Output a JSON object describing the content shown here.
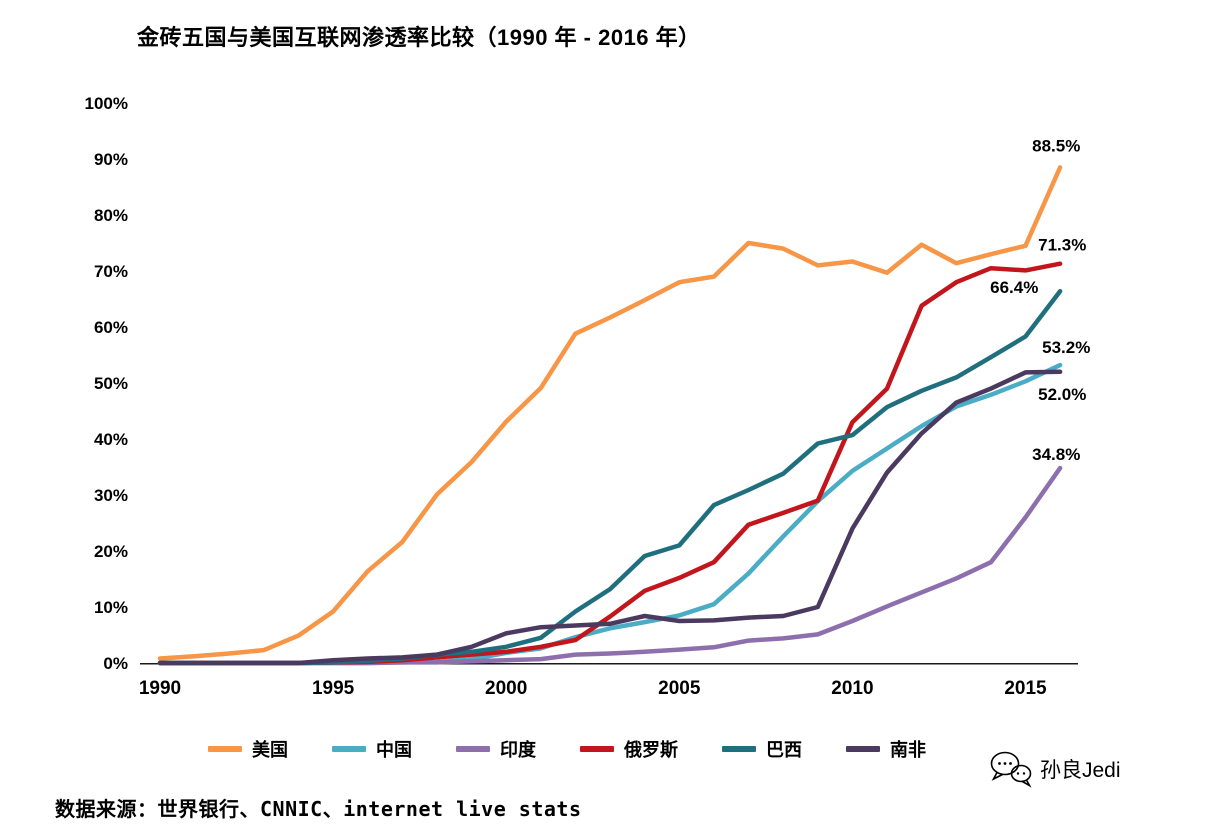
{
  "title": "金砖五国与美国互联网渗透率比较（1990 年 - 2016 年）",
  "source": "数据来源：世界银行、CNNIC、internet live stats",
  "watermark": "孙良Jedi",
  "chart_data": {
    "type": "line",
    "title": "金砖五国与美国互联网渗透率比较（1990 年 - 2016 年）",
    "x": [
      1990,
      1991,
      1992,
      1993,
      1994,
      1995,
      1996,
      1997,
      1998,
      1999,
      2000,
      2001,
      2002,
      2003,
      2004,
      2005,
      2006,
      2007,
      2008,
      2009,
      2010,
      2011,
      2012,
      2013,
      2014,
      2015,
      2016
    ],
    "series": [
      {
        "name": "美国",
        "color": "#F79646",
        "end_label": "88.5%",
        "label_offset": [
          -28,
          -16
        ],
        "values": [
          0.8,
          1.2,
          1.7,
          2.3,
          4.9,
          9.2,
          16.4,
          21.6,
          30.1,
          35.9,
          43.1,
          49.1,
          58.8,
          61.7,
          64.8,
          68.0,
          69.0,
          75.0,
          74.0,
          71.0,
          71.7,
          69.7,
          74.7,
          71.4,
          73.0,
          74.5,
          88.5
        ]
      },
      {
        "name": "中国",
        "color": "#4BACC6",
        "end_label": "53.2%",
        "label_offset": [
          -18,
          -12
        ],
        "values": [
          0,
          0,
          0,
          0,
          0,
          0,
          0,
          0.1,
          0.2,
          0.7,
          1.8,
          2.6,
          4.6,
          6.2,
          7.3,
          8.5,
          10.5,
          16.0,
          22.6,
          28.9,
          34.3,
          38.3,
          42.3,
          45.8,
          47.9,
          50.3,
          53.2
        ]
      },
      {
        "name": "印度",
        "color": "#8E6FAD",
        "end_label": "34.8%",
        "label_offset": [
          -28,
          -8
        ],
        "values": [
          0,
          0,
          0,
          0,
          0,
          0,
          0,
          0.1,
          0.1,
          0.3,
          0.5,
          0.7,
          1.5,
          1.7,
          2.0,
          2.4,
          2.8,
          4.0,
          4.4,
          5.1,
          7.5,
          10.1,
          12.6,
          15.1,
          18.0,
          26.0,
          34.8
        ]
      },
      {
        "name": "俄罗斯",
        "color": "#C3161C",
        "end_label": "71.3%",
        "label_offset": [
          -22,
          -13
        ],
        "values": [
          0,
          0,
          0,
          0,
          0,
          0.1,
          0.2,
          0.5,
          1.0,
          1.5,
          2.0,
          2.9,
          4.1,
          8.3,
          12.9,
          15.2,
          18.0,
          24.7,
          26.8,
          29.0,
          43.0,
          49.0,
          63.8,
          68.0,
          70.5,
          70.1,
          71.3
        ]
      },
      {
        "name": "巴西",
        "color": "#1F6F7F",
        "end_label": "66.4%",
        "label_offset": [
          -70,
          2
        ],
        "values": [
          0,
          0,
          0,
          0,
          0,
          0.1,
          0.4,
          0.8,
          1.5,
          2.0,
          2.9,
          4.5,
          9.2,
          13.2,
          19.1,
          21.0,
          28.2,
          30.9,
          33.8,
          39.2,
          40.7,
          45.7,
          48.6,
          51.0,
          54.6,
          58.3,
          66.4
        ]
      },
      {
        "name": "南非",
        "color": "#4B3A5F",
        "end_label": "52.0%",
        "label_offset": [
          -22,
          28
        ],
        "values": [
          0,
          0,
          0,
          0,
          0,
          0.5,
          0.8,
          1.0,
          1.5,
          2.9,
          5.3,
          6.4,
          6.7,
          7.0,
          8.4,
          7.5,
          7.6,
          8.1,
          8.4,
          10.0,
          24.0,
          34.0,
          41.0,
          46.5,
          49.0,
          51.9,
          52.0
        ]
      }
    ],
    "ylim": [
      0,
      100
    ],
    "yticks": [
      0,
      10,
      20,
      30,
      40,
      50,
      60,
      70,
      80,
      90,
      100
    ],
    "xticks": [
      1990,
      1995,
      2000,
      2005,
      2010,
      2015
    ],
    "ylabel": "",
    "xlabel": "",
    "grid": false,
    "legend_position": "bottom"
  }
}
